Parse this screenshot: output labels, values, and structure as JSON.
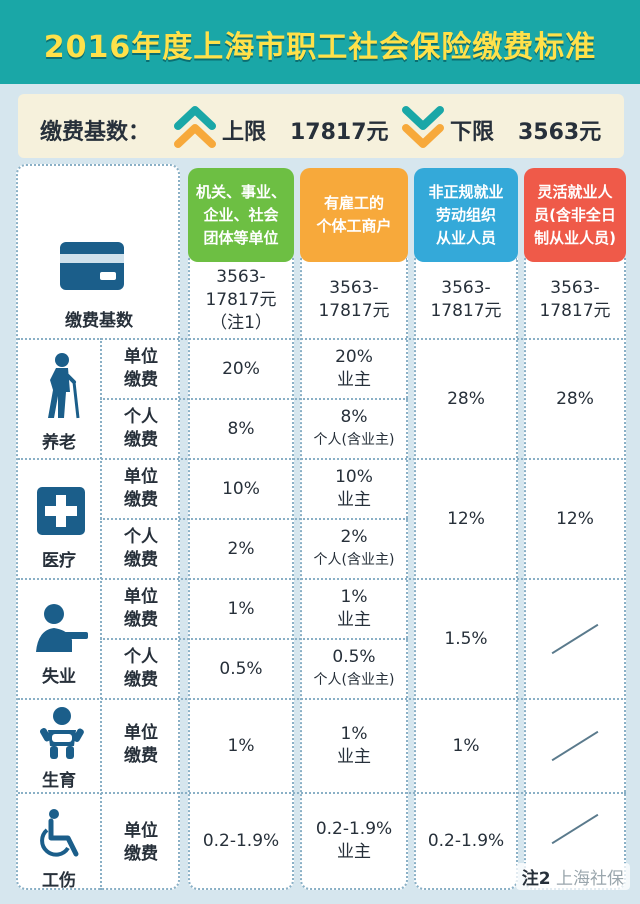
{
  "title": "2016年度上海市职工社会保险缴费标准",
  "base_strip": {
    "label": "缴费基数：",
    "upper_label": "上限",
    "upper_value": "17817元",
    "lower_label": "下限",
    "lower_value": "3563元"
  },
  "columns": [
    {
      "lines": [
        "机关、事业、",
        "企业、社会",
        "团体等单位"
      ],
      "color": "#6dbf43"
    },
    {
      "lines": [
        "有雇工的",
        "个体工商户"
      ],
      "color": "#f7a93b"
    },
    {
      "lines": [
        "非正规就业",
        "劳动组织",
        "从业人员"
      ],
      "color": "#34a9d9"
    },
    {
      "lines": [
        "灵活就业人",
        "员(含非全日",
        "制从业人员)"
      ],
      "color": "#ef5a49"
    }
  ],
  "base_row": {
    "label": "缴费基数",
    "values": [
      [
        "3563-",
        "17817元",
        "（注1）"
      ],
      [
        "3563-",
        "17817元"
      ],
      [
        "3563-",
        "17817元"
      ],
      [
        "3563-",
        "17817元"
      ]
    ]
  },
  "unit_fee": [
    "单位",
    "缴费"
  ],
  "personal_fee": [
    "个人",
    "缴费"
  ],
  "categories": [
    {
      "name": "养老",
      "icon": "elderly-person-icon",
      "unit": [
        "20%",
        [
          "20%",
          "业主"
        ]
      ],
      "personal": [
        "8%",
        [
          "8%",
          "个人(含业主)"
        ]
      ],
      "merged": [
        "28%",
        "28%"
      ]
    },
    {
      "name": "医疗",
      "icon": "medical-cross-icon",
      "unit": [
        "10%",
        [
          "10%",
          "业主"
        ]
      ],
      "personal": [
        "2%",
        [
          "2%",
          "个人(含业主)"
        ]
      ],
      "merged": [
        "12%",
        "12%"
      ]
    },
    {
      "name": "失业",
      "icon": "unemployed-person-icon",
      "unit": [
        "1%",
        [
          "1%",
          "业主"
        ]
      ],
      "personal": [
        "0.5%",
        [
          "0.5%",
          "个人(含业主)"
        ]
      ],
      "merged": [
        "1.5%",
        ""
      ]
    },
    {
      "name": "生育",
      "icon": "baby-icon",
      "unit": [
        "1%",
        [
          "1%",
          "业主"
        ],
        "1%",
        ""
      ]
    },
    {
      "name": "工伤",
      "icon": "wheelchair-icon",
      "unit": [
        "0.2-1.9%",
        [
          "0.2-1.9%",
          "业主"
        ],
        "0.2-1.9%",
        ""
      ]
    }
  ],
  "watermark": "上海社保",
  "note2": "注2"
}
